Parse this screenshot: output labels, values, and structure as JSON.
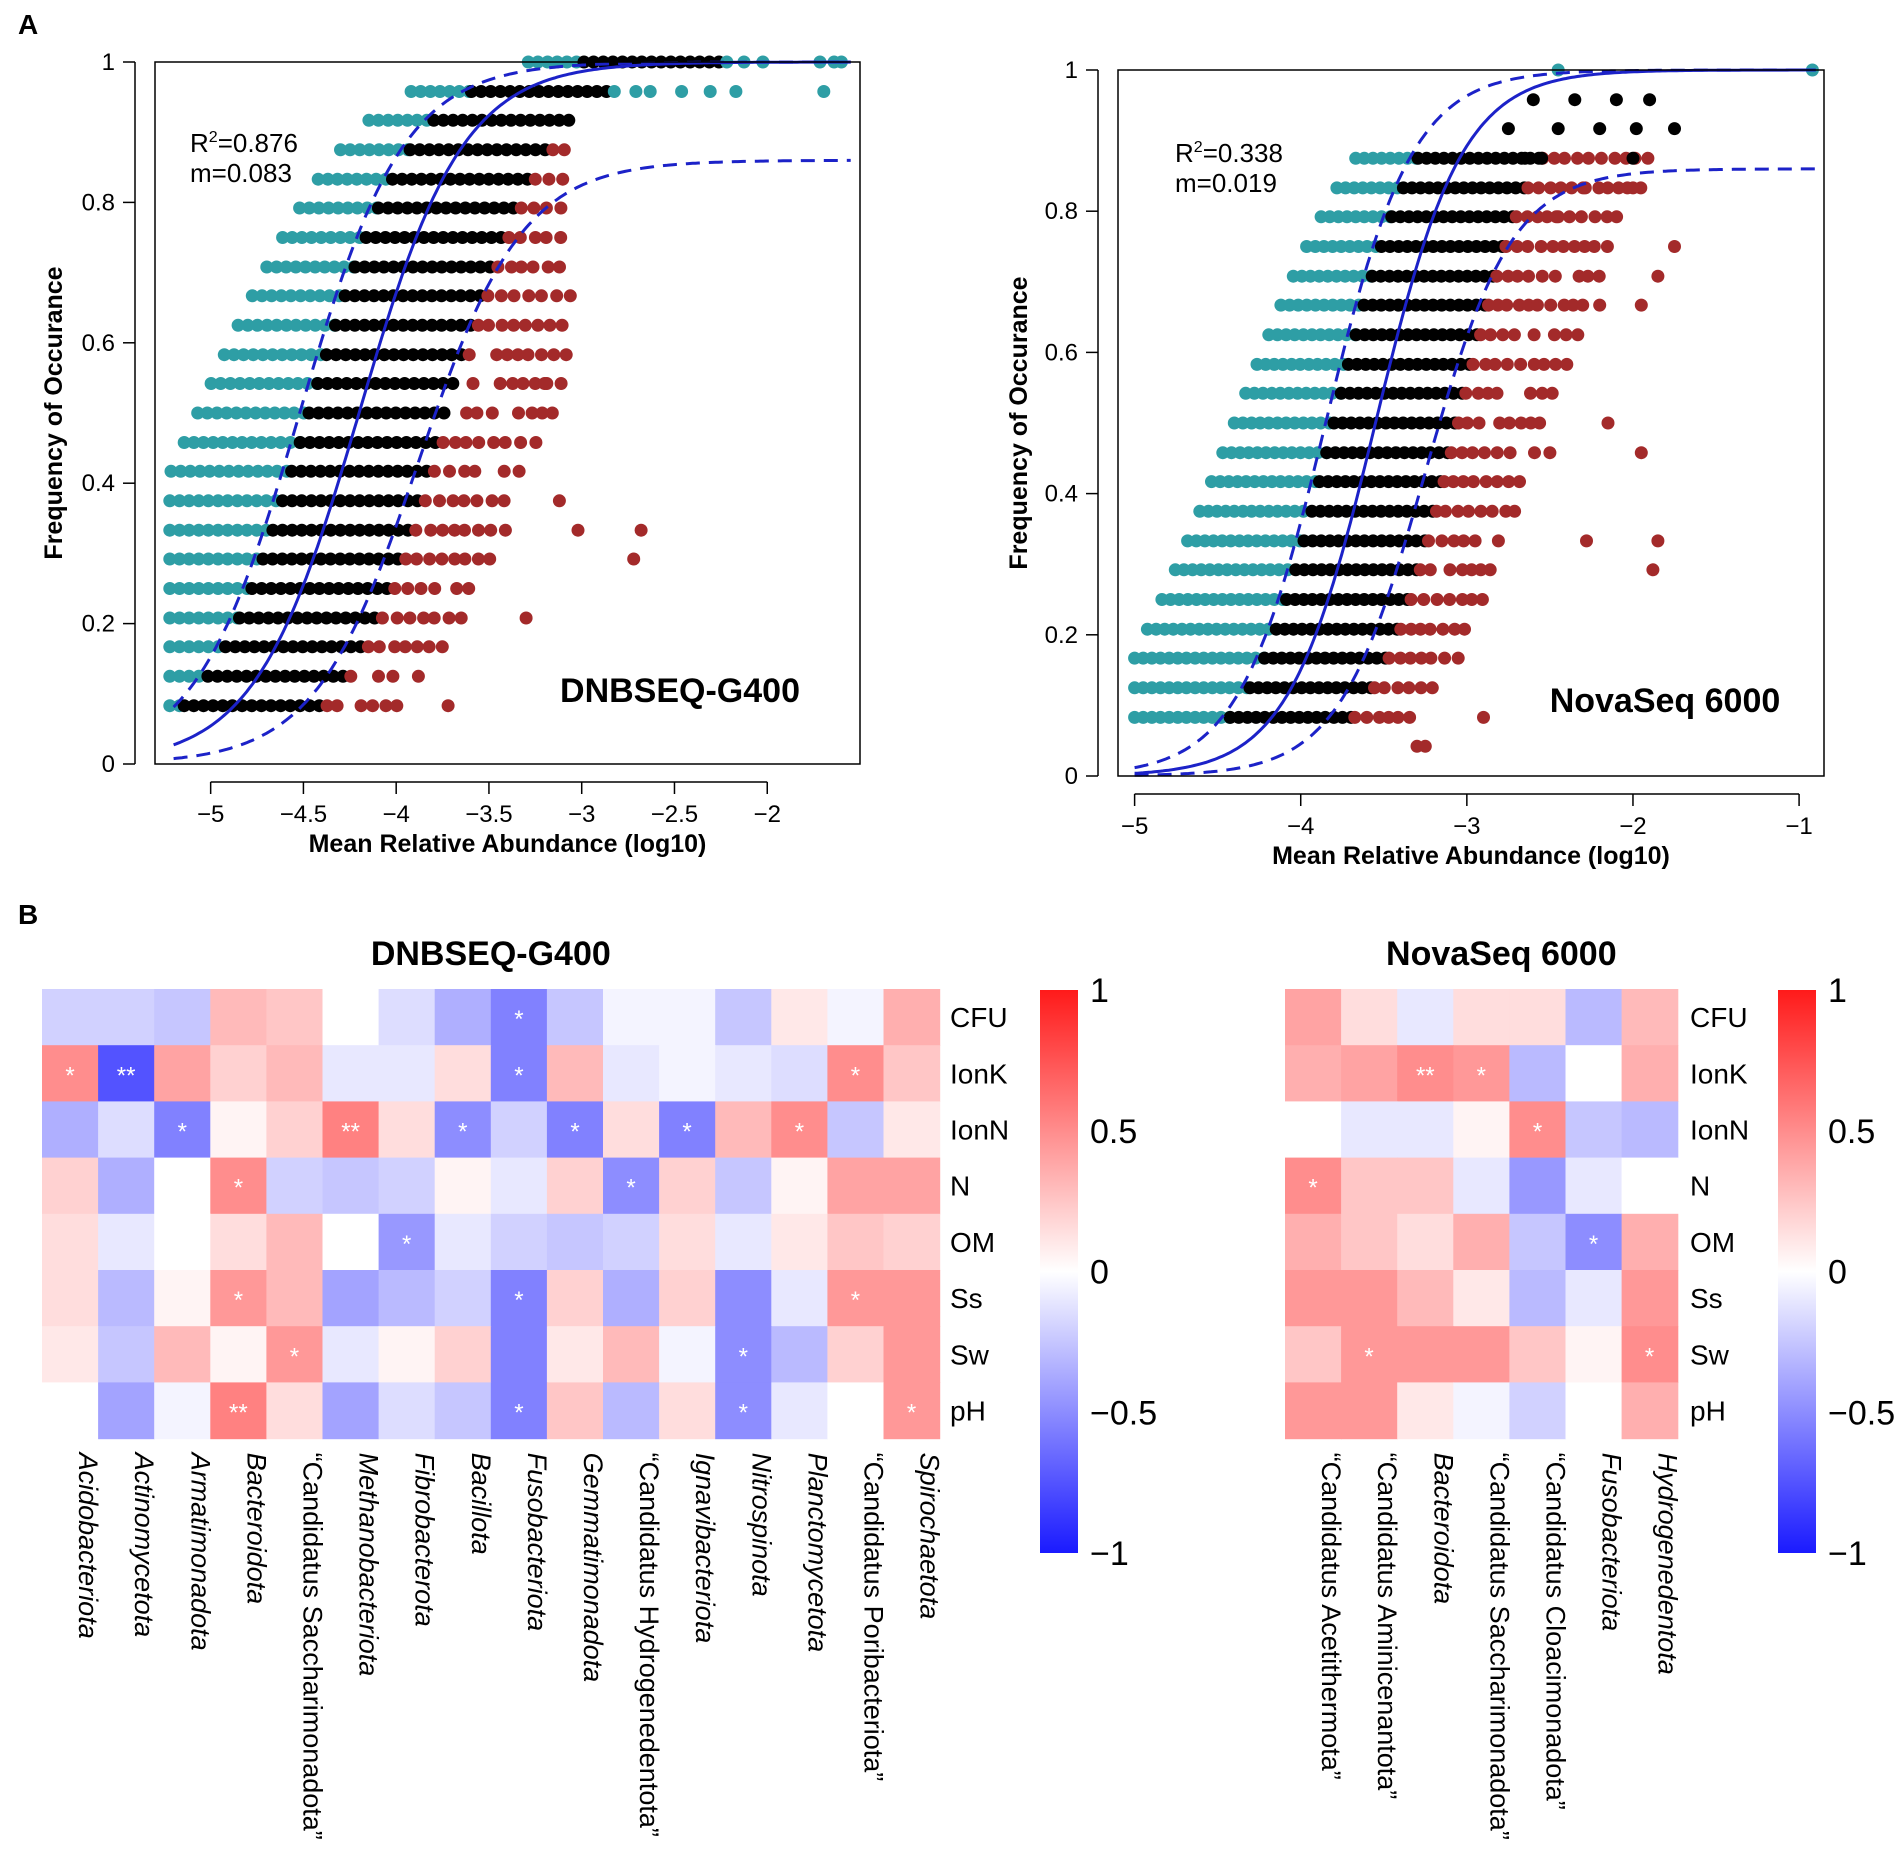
{
  "panel_labels": {
    "a": "A",
    "b": "B"
  },
  "colors": {
    "neutral": "#000000",
    "above": "#2e9ea5",
    "below": "#a32a2a",
    "fit": "#1c22c8",
    "heat_pos": "#ff1a1a",
    "heat_neg": "#1a1aff"
  },
  "chart_data": [
    {
      "id": "scatter-dnbseq",
      "type": "scatter",
      "title": "DNBSEQ-G400",
      "xlabel": "Mean Relative Abundance (log10)",
      "ylabel": "Frequency of Occurance",
      "xlim": [
        -5.3,
        -1.5
      ],
      "ylim": [
        0,
        1
      ],
      "xticks": [
        -5,
        -4.5,
        -4,
        -3.5,
        -3,
        -2.5,
        -2
      ],
      "xtick_labels": [
        "−5",
        "−4.5",
        "−4",
        "−3.5",
        "−3",
        "−2.5",
        "−2"
      ],
      "yticks": [
        0,
        0.2,
        0.4,
        0.6,
        0.8,
        1
      ],
      "ytick_labels": [
        "0",
        "0.2",
        "0.4",
        "0.6",
        "0.8",
        "1"
      ],
      "annotation": {
        "r2_label": "R",
        "r2_sup": "2",
        "r2_value": "=0.876",
        "m_label": "m=0.083"
      },
      "model": {
        "center": -4.2,
        "scale": 0.28,
        "upper_max": 1.0,
        "upper_shift": 0.32,
        "lower_max": 0.86,
        "lower_shift": -0.32
      },
      "levels": [
        0.083,
        0.125,
        0.167,
        0.208,
        0.25,
        0.292,
        0.333,
        0.375,
        0.417,
        0.458,
        0.5,
        0.542,
        0.583,
        0.625,
        0.667,
        0.708,
        0.75,
        0.792,
        0.833,
        0.875,
        0.917,
        0.958,
        1.0
      ],
      "x_min": -5.22,
      "x_max_above": -1.6,
      "x_max_below": -3.05,
      "outliers": [
        {
          "x": -3.12,
          "y": 0.375,
          "group": "below"
        },
        {
          "x": -3.02,
          "y": 0.333,
          "group": "below"
        },
        {
          "x": -2.68,
          "y": 0.333,
          "group": "below"
        },
        {
          "x": -2.72,
          "y": 0.292,
          "group": "below"
        },
        {
          "x": -3.3,
          "y": 0.208,
          "group": "below"
        },
        {
          "x": -3.2,
          "y": 0.542,
          "group": "below"
        },
        {
          "x": -3.72,
          "y": 0.083,
          "group": "below"
        },
        {
          "x": -1.6,
          "y": 1.0,
          "group": "above"
        }
      ]
    },
    {
      "id": "scatter-novaseq",
      "type": "scatter",
      "title": "NovaSeq 6000",
      "xlabel": "Mean Relative Abundance (log10)",
      "ylabel": "Frequency of Occurance",
      "xlim": [
        -5.1,
        -0.85
      ],
      "ylim": [
        0,
        1
      ],
      "xticks": [
        -5,
        -4,
        -3,
        -2,
        -1
      ],
      "xtick_labels": [
        "−5",
        "−4",
        "−3",
        "−2",
        "−1"
      ],
      "yticks": [
        0,
        0.2,
        0.4,
        0.6,
        0.8,
        1
      ],
      "ytick_labels": [
        "0",
        "0.2",
        "0.4",
        "0.6",
        "0.8",
        "1"
      ],
      "annotation": {
        "r2_label": "R",
        "r2_sup": "2",
        "r2_value": "=0.338",
        "m_label": "m=0.019"
      },
      "model": {
        "center": -3.55,
        "scale": 0.26,
        "upper_max": 1.0,
        "upper_shift": 0.3,
        "lower_max": 0.86,
        "lower_shift": -0.3
      },
      "levels": [
        0.083,
        0.125,
        0.167,
        0.208,
        0.25,
        0.292,
        0.333,
        0.375,
        0.417,
        0.458,
        0.5,
        0.542,
        0.583,
        0.625,
        0.667,
        0.708,
        0.75,
        0.792,
        0.833,
        0.875
      ],
      "x_min": -5.0,
      "x_max_above": -3.4,
      "x_max_below": -1.9,
      "outliers": [
        {
          "x": -2.45,
          "y": 1.0,
          "group": "above"
        },
        {
          "x": -0.92,
          "y": 1.0,
          "group": "above"
        },
        {
          "x": -2.6,
          "y": 0.958,
          "group": "neutral"
        },
        {
          "x": -2.35,
          "y": 0.958,
          "group": "neutral"
        },
        {
          "x": -2.1,
          "y": 0.958,
          "group": "neutral"
        },
        {
          "x": -1.9,
          "y": 0.958,
          "group": "neutral"
        },
        {
          "x": -2.75,
          "y": 0.917,
          "group": "neutral"
        },
        {
          "x": -2.45,
          "y": 0.917,
          "group": "neutral"
        },
        {
          "x": -2.2,
          "y": 0.917,
          "group": "neutral"
        },
        {
          "x": -1.98,
          "y": 0.917,
          "group": "neutral"
        },
        {
          "x": -1.75,
          "y": 0.917,
          "group": "neutral"
        },
        {
          "x": -2.65,
          "y": 0.875,
          "group": "neutral"
        },
        {
          "x": -2.55,
          "y": 0.875,
          "group": "neutral"
        },
        {
          "x": -2.0,
          "y": 0.875,
          "group": "neutral"
        },
        {
          "x": -2.3,
          "y": 0.833,
          "group": "below"
        },
        {
          "x": -2.0,
          "y": 0.833,
          "group": "below"
        },
        {
          "x": -2.45,
          "y": 0.792,
          "group": "below"
        },
        {
          "x": -1.75,
          "y": 0.75,
          "group": "below"
        },
        {
          "x": -1.85,
          "y": 0.708,
          "group": "below"
        },
        {
          "x": -2.2,
          "y": 0.667,
          "group": "below"
        },
        {
          "x": -1.95,
          "y": 0.667,
          "group": "below"
        },
        {
          "x": -2.15,
          "y": 0.5,
          "group": "below"
        },
        {
          "x": -1.95,
          "y": 0.458,
          "group": "below"
        },
        {
          "x": -1.85,
          "y": 0.333,
          "group": "below"
        },
        {
          "x": -2.28,
          "y": 0.333,
          "group": "below"
        },
        {
          "x": -1.88,
          "y": 0.292,
          "group": "below"
        },
        {
          "x": -2.5,
          "y": 0.458,
          "group": "below"
        },
        {
          "x": -2.9,
          "y": 0.083,
          "group": "below"
        },
        {
          "x": -3.25,
          "y": 0.042,
          "group": "below"
        },
        {
          "x": -3.3,
          "y": 0.042,
          "group": "below"
        }
      ]
    },
    {
      "id": "heatmap-dnbseq",
      "type": "heatmap",
      "title": "DNBSEQ-G400",
      "rows": [
        "CFU",
        "IonK",
        "IonN",
        "N",
        "OM",
        "Ss",
        "Sw",
        "pH"
      ],
      "columns": [
        "Acidobacteriota",
        "Actinomycetota",
        "Armatimonadota",
        "Bacteroidota",
        "“Candidatus Saccharimonadota”",
        "Methanobacteriota",
        "Fibrobacterota",
        "Bacillota",
        "Fusobacteriota",
        "Gemmatimonadota",
        "“Candidatus Hydrogenedentota”",
        "Ignavibacteriota",
        "Nitrospinota",
        "Planctomycetota",
        "“Candidatus Poribacteriota”",
        "Spirochaetota"
      ],
      "italic_columns": [
        true,
        true,
        true,
        true,
        false,
        true,
        true,
        true,
        true,
        true,
        false,
        true,
        true,
        true,
        false,
        true
      ],
      "values": [
        [
          -0.2,
          -0.2,
          -0.25,
          0.3,
          0.25,
          0.0,
          -0.15,
          -0.35,
          -0.55,
          -0.25,
          -0.05,
          -0.05,
          -0.25,
          0.1,
          -0.05,
          0.35
        ],
        [
          0.5,
          -0.75,
          0.4,
          0.2,
          0.3,
          -0.1,
          -0.1,
          0.15,
          -0.55,
          0.3,
          -0.1,
          -0.05,
          -0.1,
          -0.15,
          0.5,
          0.25
        ],
        [
          -0.35,
          -0.15,
          -0.55,
          0.05,
          0.2,
          0.55,
          0.15,
          -0.5,
          -0.2,
          -0.55,
          0.15,
          -0.55,
          0.3,
          0.5,
          -0.25,
          0.1
        ],
        [
          0.2,
          -0.35,
          0.0,
          0.5,
          -0.2,
          -0.25,
          -0.2,
          0.05,
          -0.1,
          0.2,
          -0.5,
          0.2,
          -0.25,
          0.05,
          0.4,
          0.4
        ],
        [
          0.15,
          -0.1,
          0.0,
          0.15,
          0.3,
          0.0,
          -0.45,
          -0.1,
          -0.2,
          -0.25,
          -0.2,
          0.15,
          -0.1,
          0.1,
          0.25,
          0.2
        ],
        [
          0.15,
          -0.3,
          0.05,
          0.45,
          0.3,
          -0.4,
          -0.3,
          -0.2,
          -0.55,
          0.2,
          -0.35,
          0.2,
          -0.5,
          -0.1,
          0.45,
          0.45
        ],
        [
          0.1,
          -0.25,
          0.3,
          0.05,
          0.45,
          -0.1,
          0.05,
          0.2,
          -0.55,
          0.1,
          0.3,
          -0.05,
          -0.5,
          -0.3,
          0.2,
          0.45
        ],
        [
          0.0,
          -0.4,
          -0.05,
          0.55,
          0.15,
          -0.4,
          -0.15,
          -0.25,
          -0.55,
          0.25,
          -0.3,
          0.15,
          -0.5,
          -0.1,
          0.0,
          0.45
        ]
      ],
      "significance": [
        [
          "",
          "",
          "",
          "",
          "",
          "",
          "",
          "",
          "*",
          "",
          "",
          "",
          "",
          "",
          "",
          ""
        ],
        [
          "*",
          "**",
          "",
          "",
          "",
          "",
          "",
          "",
          "*",
          "",
          "",
          "",
          "",
          "",
          "*",
          ""
        ],
        [
          "",
          "",
          "*",
          "",
          "",
          "**",
          "",
          "*",
          "",
          "*",
          "",
          "*",
          "",
          "*",
          "",
          ""
        ],
        [
          "",
          "",
          "",
          "*",
          "",
          "",
          "",
          "",
          "",
          "",
          "*",
          "",
          "",
          "",
          "",
          ""
        ],
        [
          "",
          "",
          "",
          "",
          "",
          "",
          "*",
          "",
          "",
          "",
          "",
          "",
          "",
          "",
          "",
          ""
        ],
        [
          "",
          "",
          "",
          "*",
          "",
          "",
          "",
          "",
          "*",
          "",
          "",
          "",
          "",
          "",
          "*",
          ""
        ],
        [
          "",
          "",
          "",
          "",
          "*",
          "",
          "",
          "",
          "",
          "",
          "",
          "",
          "*",
          "",
          "",
          ""
        ],
        [
          "",
          "",
          "",
          "**",
          "",
          "",
          "",
          "",
          "*",
          "",
          "",
          "",
          "*",
          "",
          "",
          "*"
        ]
      ],
      "colorbar_ticks": [
        1,
        0.5,
        0,
        -0.5,
        -1
      ],
      "colorbar_labels": [
        "1",
        "0.5",
        "0",
        "−0.5",
        "−1"
      ]
    },
    {
      "id": "heatmap-novaseq",
      "type": "heatmap",
      "title": "NovaSeq 6000",
      "rows": [
        "CFU",
        "IonK",
        "IonN",
        "N",
        "OM",
        "Ss",
        "Sw",
        "pH"
      ],
      "columns": [
        "“Candidatus Acetithermota”",
        "“Candidatus Aminicenantota”",
        "Bacteroidota",
        "“Candidatus Saccharimonadota”",
        "“Candidatus Cloacimonadota”",
        "Fusobacteriota",
        "Hydrogenedentota"
      ],
      "italic_columns": [
        false,
        false,
        true,
        false,
        false,
        true,
        true
      ],
      "values": [
        [
          0.4,
          0.15,
          -0.1,
          0.15,
          0.15,
          -0.3,
          0.3
        ],
        [
          0.35,
          0.4,
          0.5,
          0.45,
          -0.3,
          0.0,
          0.35
        ],
        [
          0.0,
          -0.1,
          -0.1,
          0.05,
          0.5,
          -0.25,
          -0.3
        ],
        [
          0.5,
          0.25,
          0.25,
          -0.1,
          -0.45,
          -0.1,
          0.0
        ],
        [
          0.35,
          0.25,
          0.15,
          0.35,
          -0.25,
          -0.5,
          0.35
        ],
        [
          0.45,
          0.45,
          0.3,
          0.1,
          -0.3,
          -0.1,
          0.45
        ],
        [
          0.25,
          0.45,
          0.45,
          0.45,
          0.25,
          0.05,
          0.5
        ],
        [
          0.45,
          0.45,
          0.1,
          -0.05,
          -0.2,
          0.0,
          0.35
        ]
      ],
      "significance": [
        [
          "",
          "",
          "",
          "",
          "",
          "",
          ""
        ],
        [
          "",
          "",
          "**",
          "*",
          "",
          "",
          ""
        ],
        [
          "",
          "",
          "",
          "",
          "*",
          "",
          ""
        ],
        [
          "*",
          "",
          "",
          "",
          "",
          "",
          ""
        ],
        [
          "",
          "",
          "",
          "",
          "",
          "*",
          ""
        ],
        [
          "",
          "",
          "",
          "",
          "",
          "",
          ""
        ],
        [
          "",
          "*",
          "",
          "",
          "",
          "",
          "*"
        ],
        [
          "",
          "",
          "",
          "",
          "",
          "",
          ""
        ]
      ],
      "colorbar_ticks": [
        1,
        0.5,
        0,
        -0.5,
        -1
      ],
      "colorbar_labels": [
        "1",
        "0.5",
        "0",
        "−0.5",
        "−1"
      ]
    }
  ]
}
